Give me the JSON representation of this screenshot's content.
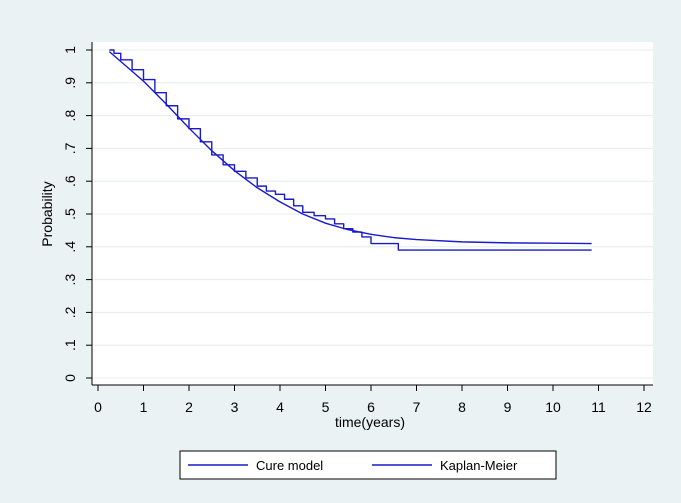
{
  "chart_data": {
    "type": "line",
    "title": "",
    "xlabel": "time(years)",
    "ylabel": "Probability",
    "xlim": [
      0,
      12
    ],
    "ylim": [
      0,
      1
    ],
    "x_ticks": [
      "0",
      "1",
      "2",
      "3",
      "4",
      "5",
      "6",
      "7",
      "8",
      "9",
      "10",
      "11",
      "12"
    ],
    "y_ticks": [
      "0",
      ".1",
      ".2",
      ".3",
      ".4",
      ".5",
      ".6",
      ".7",
      ".8",
      ".9",
      "1"
    ],
    "grid": "horizontal",
    "legend_position": "bottom",
    "colors": {
      "series": "#1a1acc",
      "background": "#eaf2f3",
      "plot": "#ffffff",
      "grid": "#e6eeee"
    },
    "series": [
      {
        "name": "Cure model",
        "style": "smooth",
        "x": [
          0.25,
          0.5,
          1,
          1.5,
          2,
          2.5,
          3,
          3.5,
          4,
          4.5,
          5,
          5.5,
          6,
          6.5,
          7,
          8,
          9,
          10,
          10.85
        ],
        "y": [
          0.995,
          0.965,
          0.905,
          0.835,
          0.762,
          0.693,
          0.632,
          0.58,
          0.537,
          0.5,
          0.472,
          0.452,
          0.438,
          0.428,
          0.422,
          0.415,
          0.412,
          0.411,
          0.41
        ]
      },
      {
        "name": "Kaplan-Meier",
        "style": "step",
        "x": [
          0.25,
          0.35,
          0.5,
          0.75,
          1,
          1.25,
          1.5,
          1.75,
          2,
          2.25,
          2.5,
          2.75,
          3,
          3.25,
          3.5,
          3.7,
          3.9,
          4.1,
          4.3,
          4.5,
          4.75,
          5,
          5.2,
          5.4,
          5.6,
          5.8,
          6,
          6.6,
          10.85
        ],
        "y": [
          1.0,
          0.99,
          0.97,
          0.94,
          0.91,
          0.87,
          0.83,
          0.79,
          0.76,
          0.72,
          0.68,
          0.65,
          0.63,
          0.61,
          0.585,
          0.57,
          0.56,
          0.545,
          0.525,
          0.505,
          0.495,
          0.485,
          0.47,
          0.455,
          0.445,
          0.43,
          0.41,
          0.39,
          0.39
        ]
      }
    ]
  }
}
